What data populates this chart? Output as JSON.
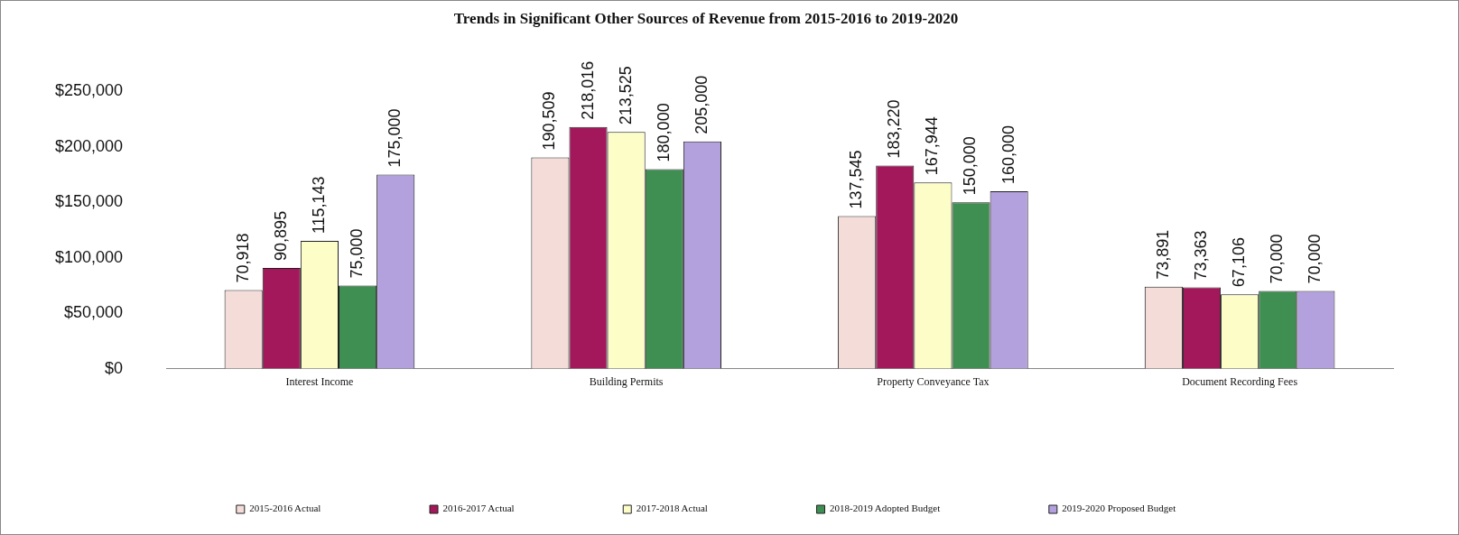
{
  "chart_data": {
    "type": "bar",
    "title": "Trends in Significant Other Sources of Revenue from 2015-2016 to 2019-2020",
    "categories": [
      "Interest Income",
      "Building Permits",
      "Property Conveyance Tax",
      "Document Recording Fees"
    ],
    "series": [
      {
        "name": "2015-2016 Actual",
        "color": "#f4dcd8",
        "values": [
          70918,
          190509,
          137545,
          73891
        ],
        "value_labels": [
          "70,918",
          "190,509",
          "137,545",
          "73,891"
        ]
      },
      {
        "name": "2016-2017 Actual",
        "color": "#a3185a",
        "values": [
          90895,
          218016,
          183220,
          73363
        ],
        "value_labels": [
          "90,895",
          "218,016",
          "183,220",
          "73,363"
        ]
      },
      {
        "name": "2017-2018 Actual",
        "color": "#fdfdc8",
        "values": [
          115143,
          213525,
          167944,
          67106
        ],
        "value_labels": [
          "115,143",
          "213,525",
          "167,944",
          "67,106"
        ]
      },
      {
        "name": "2018-2019 Adopted Budget",
        "color": "#3f8f52",
        "values": [
          75000,
          180000,
          150000,
          70000
        ],
        "value_labels": [
          "75,000",
          "180,000",
          "150,000",
          "70,000"
        ]
      },
      {
        "name": "2019-2020 Proposed Budget",
        "color": "#b3a1dd",
        "values": [
          175000,
          205000,
          160000,
          70000
        ],
        "value_labels": [
          "175,000",
          "205,000",
          "160,000",
          "70,000"
        ]
      }
    ],
    "ylim": [
      0,
      250000
    ],
    "yticks": [
      {
        "value": 0,
        "label": "$0"
      },
      {
        "value": 50000,
        "label": "$50,000"
      },
      {
        "value": 100000,
        "label": "$100,000"
      },
      {
        "value": 150000,
        "label": "$150,000"
      },
      {
        "value": 200000,
        "label": "$200,000"
      },
      {
        "value": 250000,
        "label": "$250,000"
      }
    ],
    "grid": false,
    "legend": "bottom"
  }
}
